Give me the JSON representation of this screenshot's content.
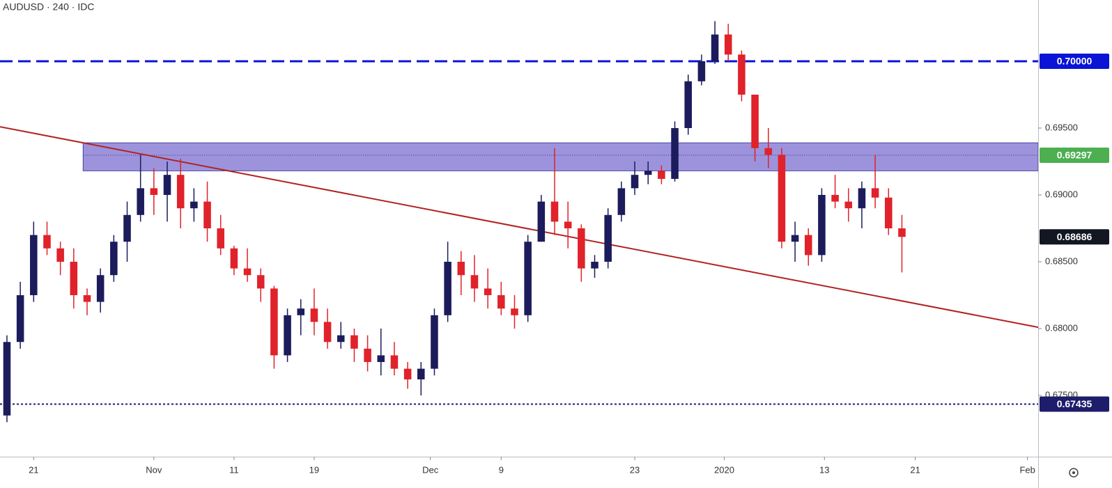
{
  "chart_data": {
    "type": "candlestick",
    "title": "AUDUSD · 240 · IDC",
    "up_color": "#1c1c5c",
    "down_color": "#e0222a",
    "x": [
      0,
      1,
      2,
      3,
      4,
      5,
      6,
      7,
      8,
      9,
      10,
      11,
      12,
      13,
      14,
      15,
      16,
      17,
      18,
      19,
      20,
      21,
      22,
      23,
      24,
      25,
      26,
      27,
      28,
      29,
      30,
      31,
      32,
      33,
      34,
      35,
      36,
      37,
      38,
      39,
      40,
      41,
      42,
      43,
      44,
      45,
      46,
      47,
      48,
      49,
      50,
      51,
      52,
      53,
      54,
      55,
      56,
      57,
      58,
      59,
      60,
      61,
      62,
      63,
      64,
      65,
      66,
      67
    ],
    "open": [
      0.6735,
      0.679,
      0.6825,
      0.687,
      0.686,
      0.685,
      0.6825,
      0.682,
      0.684,
      0.6865,
      0.6885,
      0.6905,
      0.69,
      0.6915,
      0.689,
      0.6895,
      0.6875,
      0.686,
      0.6845,
      0.684,
      0.683,
      0.678,
      0.681,
      0.6815,
      0.6805,
      0.679,
      0.6795,
      0.6785,
      0.6775,
      0.678,
      0.677,
      0.6762,
      0.677,
      0.681,
      0.685,
      0.684,
      0.683,
      0.6825,
      0.6815,
      0.681,
      0.6865,
      0.6895,
      0.688,
      0.6875,
      0.6845,
      0.685,
      0.6885,
      0.6905,
      0.6915,
      0.6918,
      0.6912,
      0.695,
      0.6985,
      0.7,
      0.702,
      0.7005,
      0.6975,
      0.6935,
      0.693,
      0.6865,
      0.687,
      0.6855,
      0.69,
      0.6895,
      0.689,
      0.6905,
      0.6898,
      0.6875
    ],
    "high": [
      0.6795,
      0.6835,
      0.688,
      0.688,
      0.6865,
      0.686,
      0.683,
      0.6845,
      0.687,
      0.6895,
      0.693,
      0.692,
      0.6925,
      0.6927,
      0.6905,
      0.691,
      0.6885,
      0.6862,
      0.686,
      0.6845,
      0.6832,
      0.6815,
      0.6822,
      0.683,
      0.6815,
      0.6805,
      0.68,
      0.6795,
      0.68,
      0.679,
      0.6775,
      0.6775,
      0.6815,
      0.6865,
      0.6858,
      0.6855,
      0.6845,
      0.6835,
      0.6825,
      0.687,
      0.69,
      0.6935,
      0.6895,
      0.6878,
      0.6855,
      0.689,
      0.691,
      0.6925,
      0.6925,
      0.6922,
      0.6955,
      0.699,
      0.7005,
      0.703,
      0.7028,
      0.7008,
      0.6975,
      0.695,
      0.6935,
      0.688,
      0.6875,
      0.6905,
      0.6915,
      0.6905,
      0.691,
      0.693,
      0.6905,
      0.6885
    ],
    "low": [
      0.673,
      0.6785,
      0.682,
      0.6855,
      0.684,
      0.6815,
      0.681,
      0.6812,
      0.6835,
      0.685,
      0.688,
      0.6885,
      0.688,
      0.6875,
      0.688,
      0.6865,
      0.6855,
      0.684,
      0.6835,
      0.682,
      0.677,
      0.6775,
      0.6795,
      0.6795,
      0.6785,
      0.6785,
      0.6775,
      0.6768,
      0.6765,
      0.6765,
      0.6755,
      0.675,
      0.6765,
      0.6805,
      0.6825,
      0.682,
      0.6815,
      0.681,
      0.68,
      0.6805,
      0.6865,
      0.687,
      0.686,
      0.6835,
      0.6838,
      0.6845,
      0.688,
      0.69,
      0.6908,
      0.6908,
      0.691,
      0.6945,
      0.6982,
      0.6998,
      0.7,
      0.697,
      0.6925,
      0.692,
      0.686,
      0.685,
      0.6847,
      0.685,
      0.689,
      0.688,
      0.6875,
      0.689,
      0.687,
      0.6842
    ],
    "close": [
      0.679,
      0.6825,
      0.687,
      0.686,
      0.685,
      0.6825,
      0.682,
      0.684,
      0.6865,
      0.6885,
      0.6905,
      0.69,
      0.6915,
      0.689,
      0.6895,
      0.6875,
      0.686,
      0.6845,
      0.684,
      0.683,
      0.678,
      0.681,
      0.6815,
      0.6805,
      0.679,
      0.6795,
      0.6785,
      0.6775,
      0.678,
      0.677,
      0.6762,
      0.677,
      0.681,
      0.685,
      0.684,
      0.683,
      0.6825,
      0.6815,
      0.681,
      0.6865,
      0.6895,
      0.688,
      0.6875,
      0.6845,
      0.685,
      0.6885,
      0.6905,
      0.6915,
      0.6918,
      0.6912,
      0.695,
      0.6985,
      0.7,
      0.702,
      0.7005,
      0.6975,
      0.6935,
      0.693,
      0.6865,
      0.687,
      0.6855,
      0.69,
      0.6895,
      0.689,
      0.6905,
      0.6898,
      0.6875,
      0.68686
    ],
    "xlim": [
      -0.52,
      77.2
    ],
    "xticks": [
      {
        "value": 2,
        "label": "21"
      },
      {
        "value": 11,
        "label": "Nov"
      },
      {
        "value": 17,
        "label": "11"
      },
      {
        "value": 23,
        "label": "19"
      },
      {
        "value": 31.7,
        "label": "Dec"
      },
      {
        "value": 37,
        "label": "9"
      },
      {
        "value": 47,
        "label": "23"
      },
      {
        "value": 53.7,
        "label": "2020"
      },
      {
        "value": 61.2,
        "label": "13"
      },
      {
        "value": 68,
        "label": "21"
      },
      {
        "value": 76.4,
        "label": "Feb"
      }
    ],
    "ylim": [
      0.67042,
      0.70458
    ],
    "yticks": [
      {
        "value": 0.695,
        "label": "0.69500"
      },
      {
        "value": 0.69,
        "label": "0.69000"
      },
      {
        "value": 0.685,
        "label": "0.68500"
      },
      {
        "value": 0.68,
        "label": "0.68000"
      },
      {
        "value": 0.675,
        "label": "0.67500"
      }
    ],
    "levels": [
      {
        "value": 0.7,
        "label": "0.70000",
        "color": "#0a14d6",
        "style": "dashed"
      },
      {
        "value": 0.67435,
        "label": "0.67435",
        "color": "#1d1d6b",
        "style": "dotted"
      }
    ],
    "zone": {
      "top": 0.6939,
      "bottom": 0.6918,
      "start_x": 5.7,
      "level": 0.69297,
      "label": "0.69297",
      "color": "#7b6fd0",
      "label_color": "#4caf50"
    },
    "trendline": {
      "x": [
        -0.52,
        77.2
      ],
      "y": [
        0.6951,
        0.6801
      ],
      "color": "#b22222"
    },
    "last_price": {
      "value": 0.68686,
      "label": "0.68686",
      "color": "#131722"
    }
  }
}
